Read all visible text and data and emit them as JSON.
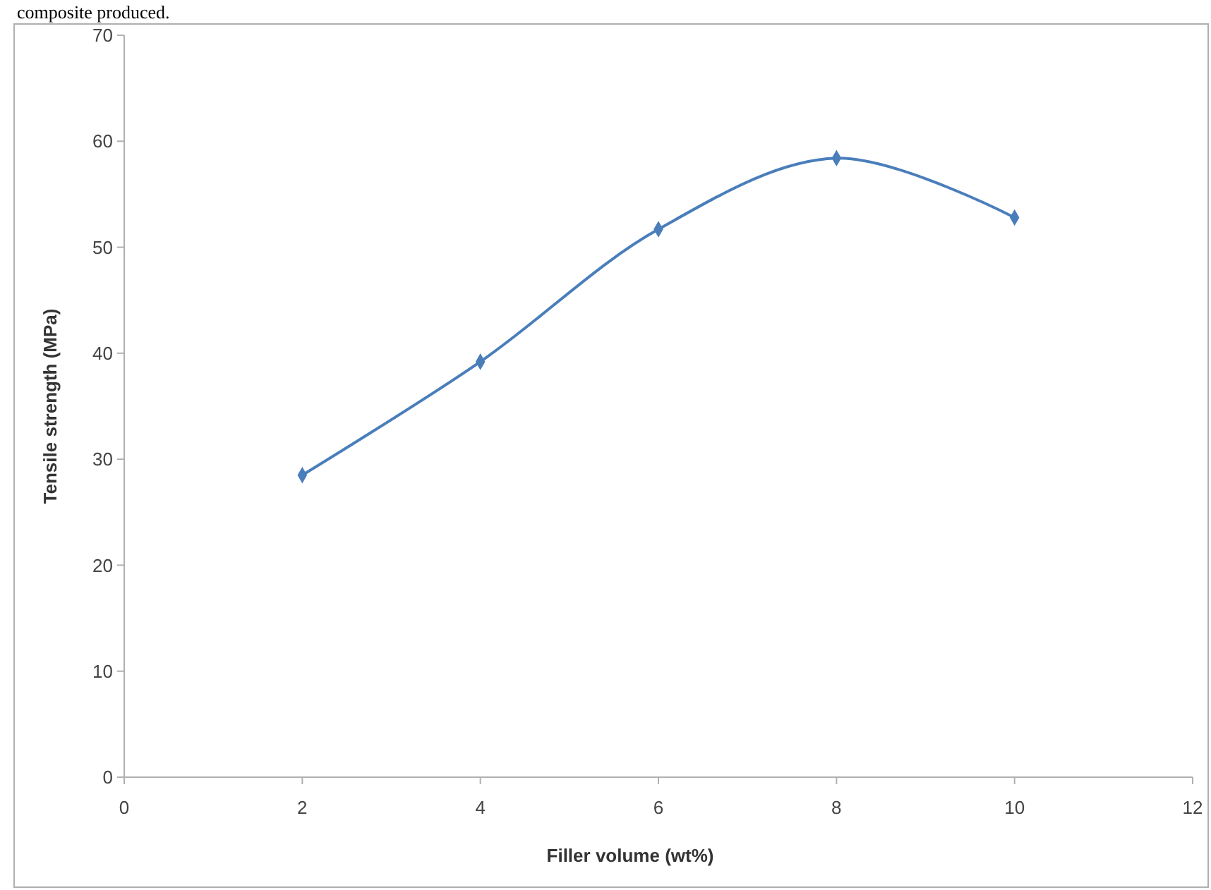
{
  "chart_data": {
    "type": "line",
    "xlabel": "Filler volume (wt%)",
    "ylabel": "Tensile strength (MPa)",
    "annotations": [
      "composite produced."
    ],
    "x": [
      2,
      4,
      6,
      8,
      10
    ],
    "series": [
      {
        "color": "#4a7ebb",
        "values": [
          28.5,
          39.2,
          51.7,
          58.4,
          52.8
        ]
      }
    ],
    "xlim": [
      0,
      12
    ],
    "xticks": [
      0,
      2,
      4,
      6,
      8,
      10,
      12
    ],
    "ylim": [
      0,
      70
    ],
    "yticks": [
      0,
      10,
      20,
      30,
      40,
      50,
      60,
      70
    ],
    "grid": false,
    "marker": "diamond",
    "line_style": "solid"
  }
}
